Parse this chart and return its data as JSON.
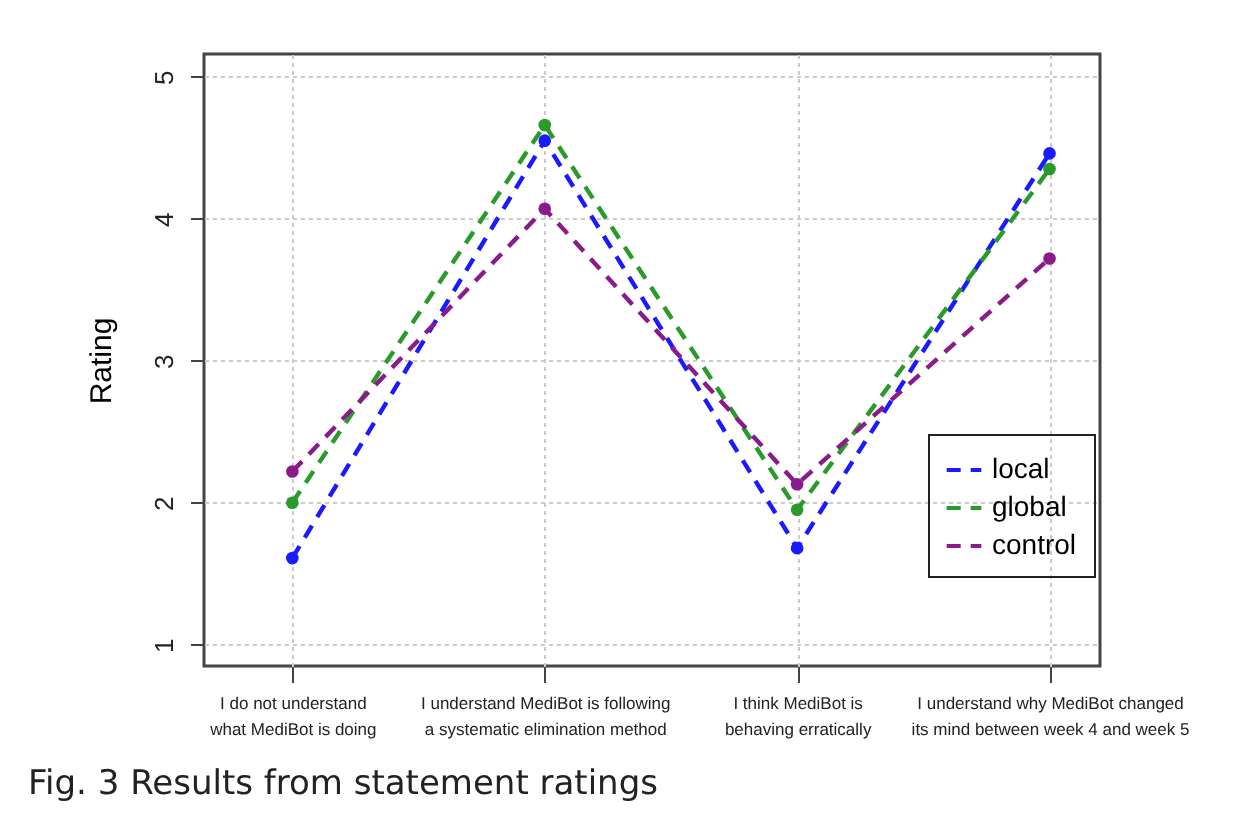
{
  "chart_data": {
    "type": "line",
    "ylabel": "Rating",
    "categories": [
      "I do not understand\nwhat MediBot is doing",
      "I understand MediBot is following\na systematic elimination method",
      "I think MediBot is\nbehaving erratically",
      "I understand why MediBot changed\nits mind between week 4 and week 5"
    ],
    "series": [
      {
        "name": "local",
        "color": "#1a1aff",
        "values": [
          1.61,
          4.55,
          1.68,
          4.46
        ]
      },
      {
        "name": "global",
        "color": "#2a9a2a",
        "values": [
          2.0,
          4.66,
          1.95,
          4.35
        ]
      },
      {
        "name": "control",
        "color": "#8b1a8b",
        "values": [
          2.22,
          4.07,
          2.13,
          3.72
        ]
      }
    ],
    "ylim": [
      0.85,
      5.16
    ],
    "yticks": [
      1,
      2,
      3,
      4,
      5
    ],
    "grid": true,
    "legend": "right",
    "marker": "circle",
    "line_style": "dashed",
    "annotations": [
      "Fig. 3 Results from statement ratings"
    ]
  }
}
